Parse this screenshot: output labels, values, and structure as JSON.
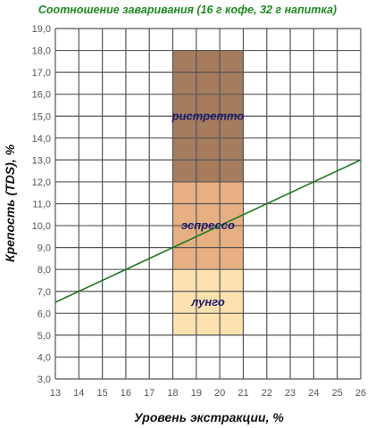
{
  "chart_data": {
    "type": "line",
    "title": "Соотношение заваривания (16 г кофе, 32 г напитка)",
    "xlabel": "Уровень экстракции, %",
    "ylabel": "Крепость (TDS), %",
    "xlim": [
      13,
      26
    ],
    "ylim": [
      3,
      19
    ],
    "x_ticks": [
      13,
      14,
      15,
      16,
      17,
      18,
      19,
      20,
      21,
      22,
      23,
      24,
      25,
      26
    ],
    "y_ticks": [
      "3,0",
      "4,0",
      "5,0",
      "6,0",
      "7,0",
      "8,0",
      "9,0",
      "10,0",
      "11,0",
      "12,0",
      "13,0",
      "14,0",
      "15,0",
      "16,0",
      "17,0",
      "18,0",
      "19,0"
    ],
    "grid": true,
    "regions": [
      {
        "name": "лунго",
        "x": [
          18,
          21
        ],
        "y": [
          5,
          8
        ],
        "color": "#fde2b0"
      },
      {
        "name": "эспрессо",
        "x": [
          18,
          21
        ],
        "y": [
          8,
          12
        ],
        "color": "#e6b083"
      },
      {
        "name": "ристретто",
        "x": [
          18,
          21
        ],
        "y": [
          12,
          18
        ],
        "color": "#a67c5e"
      }
    ],
    "series": [
      {
        "x": [
          13,
          26
        ],
        "y": [
          6.5,
          13.0
        ],
        "color": "#1e7a1e"
      }
    ]
  }
}
